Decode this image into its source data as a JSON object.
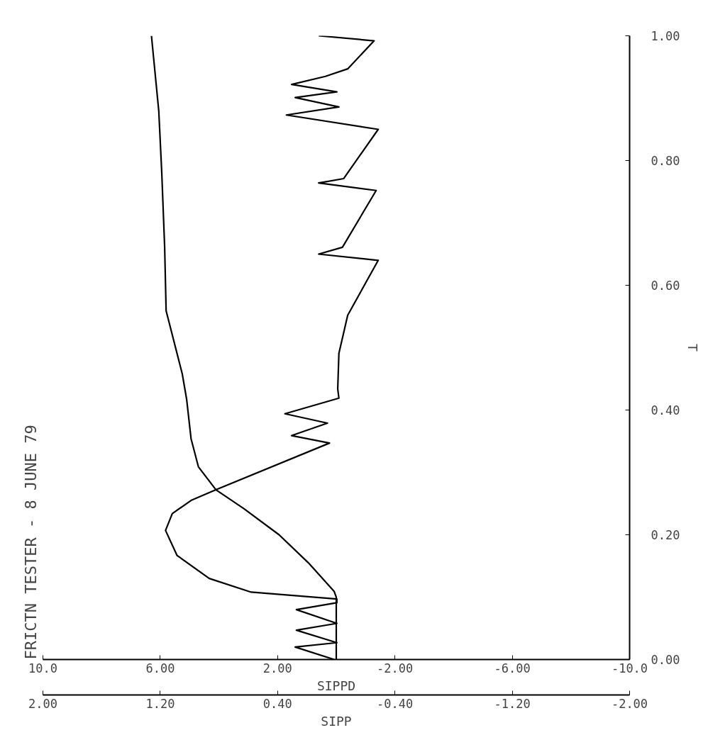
{
  "chart_data": {
    "type": "line",
    "title": "FRICTN TESTER - 8 JUNE 79",
    "ylabel": "T",
    "xlabel": "SIPPD",
    "x2label": "SIPP",
    "ylim": [
      0,
      1
    ],
    "yticks": [
      {
        "value": 0,
        "label": "0.00"
      },
      {
        "value": 0.2,
        "label": "0.20"
      },
      {
        "value": 0.4,
        "label": "0.40"
      },
      {
        "value": 0.6,
        "label": "0.60"
      },
      {
        "value": 0.8,
        "label": "0.80"
      },
      {
        "value": 1,
        "label": "1.00"
      }
    ],
    "xlim": [
      10,
      -10
    ],
    "xticks": [
      {
        "value": -10,
        "label": "-10.0"
      },
      {
        "value": -6,
        "label": "-6.00"
      },
      {
        "value": -2,
        "label": "-2.00"
      },
      {
        "value": 2,
        "label": "2.00"
      },
      {
        "value": 6,
        "label": "6.00"
      },
      {
        "value": 10,
        "label": "10.0"
      }
    ],
    "x2lim": [
      2,
      -2
    ],
    "x2ticks": [
      {
        "value": -2,
        "label": "-2.00"
      },
      {
        "value": -1.2,
        "label": "-1.20"
      },
      {
        "value": -0.4,
        "label": "-0.40"
      },
      {
        "value": 0.4,
        "label": "0.40"
      },
      {
        "value": 1.2,
        "label": "1.20"
      },
      {
        "value": 2,
        "label": "2.00"
      }
    ],
    "grid": false,
    "line_style": "solid",
    "series": [
      {
        "color": "#000000",
        "values": [
          0,
          0.02,
          0.027,
          0.047,
          0.058,
          0.08,
          0.091,
          0.097,
          0.108,
          0.13,
          0.167,
          0.207,
          0.234,
          0.255,
          0.272,
          0.347,
          0.359,
          0.379,
          0.394,
          0.419,
          0.434,
          0.491,
          0.552,
          0.64,
          0.65,
          0.661,
          0.752,
          0.764,
          0.771,
          0.85,
          0.873,
          0.886,
          0.901,
          0.91,
          0.922,
          0.935,
          0.947,
          0.992,
          1.0
        ],
        "x": [
          0.07,
          1.4,
          -0.02,
          1.36,
          -0.02,
          1.36,
          -0.02,
          -0.02,
          2.9,
          4.33,
          5.43,
          5.82,
          5.59,
          4.95,
          4.12,
          0.23,
          1.52,
          0.3,
          1.75,
          -0.09,
          -0.05,
          -0.09,
          -0.39,
          -1.43,
          0.6,
          -0.21,
          -1.36,
          0.6,
          -0.25,
          -1.43,
          1.7,
          -0.09,
          1.4,
          -0.02,
          1.52,
          0.37,
          -0.39,
          -1.29,
          0.6
        ]
      },
      {
        "color": "#000000",
        "axis": "x2",
        "values": [
          0,
          0.1,
          0.109,
          0.155,
          0.2,
          0.242,
          0.272,
          0.309,
          0.354,
          0.417,
          0.458,
          0.559,
          0.661,
          0.782,
          0.879,
          1.0
        ],
        "x": [
          0,
          0,
          0.014,
          0.19,
          0.39,
          0.63,
          0.82,
          0.94,
          0.99,
          1.02,
          1.05,
          1.16,
          1.17,
          1.19,
          1.21,
          1.26
        ]
      }
    ]
  }
}
